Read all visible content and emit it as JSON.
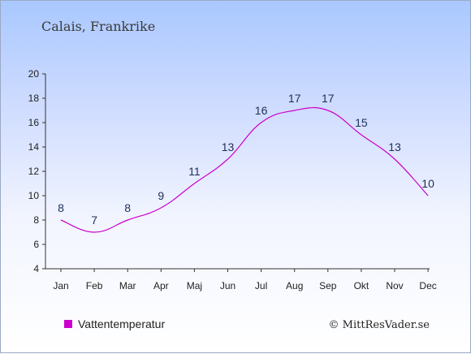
{
  "chart_data": {
    "type": "line",
    "title": "Calais, Frankrike",
    "categories": [
      "Jan",
      "Feb",
      "Mar",
      "Apr",
      "Maj",
      "Jun",
      "Jul",
      "Aug",
      "Sep",
      "Okt",
      "Nov",
      "Dec"
    ],
    "series": [
      {
        "name": "Vattentemperatur",
        "values": [
          8,
          7,
          8,
          9,
          11,
          13,
          16,
          17,
          17,
          15,
          13,
          10
        ],
        "color": "#cc00cc"
      }
    ],
    "ylim": [
      4,
      20
    ],
    "yticks": [
      4,
      6,
      8,
      10,
      12,
      14,
      16,
      18,
      20
    ],
    "grid": false,
    "legend_position": "bottom-left"
  },
  "legend": {
    "label": "Vattentemperatur",
    "color": "#cc00cc"
  },
  "copyright": "© MittResVader.se"
}
